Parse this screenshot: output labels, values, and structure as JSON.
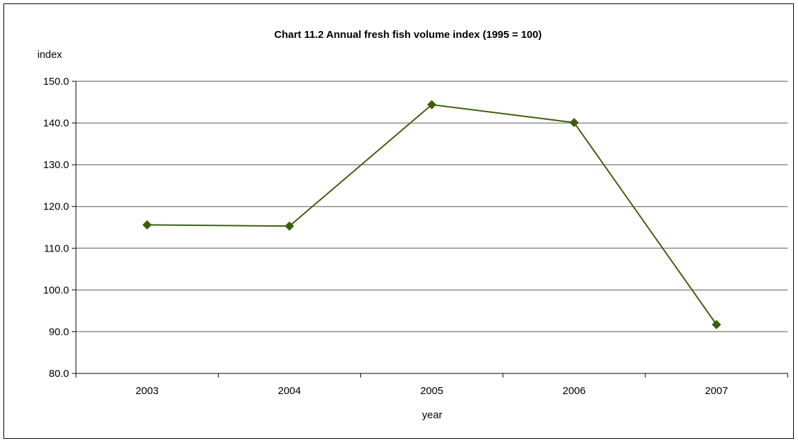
{
  "chart_data": {
    "type": "line",
    "title": "Chart 11.2  Annual fresh fish volume index (1995 = 100)",
    "xlabel": "year",
    "ylabel": "index",
    "categories": [
      "2003",
      "2004",
      "2005",
      "2006",
      "2007"
    ],
    "series": [
      {
        "values": [
          115.6,
          115.3,
          144.4,
          140.1,
          91.7
        ],
        "color": "#3a5f0b"
      }
    ],
    "ylim": [
      80.0,
      150.0
    ],
    "yticks": [
      "80.0",
      "90.0",
      "100.0",
      "110.0",
      "120.0",
      "130.0",
      "140.0",
      "150.0"
    ],
    "grid": true,
    "gridline_color": "#8c8c8c",
    "marker": "diamond",
    "legend": "none"
  }
}
